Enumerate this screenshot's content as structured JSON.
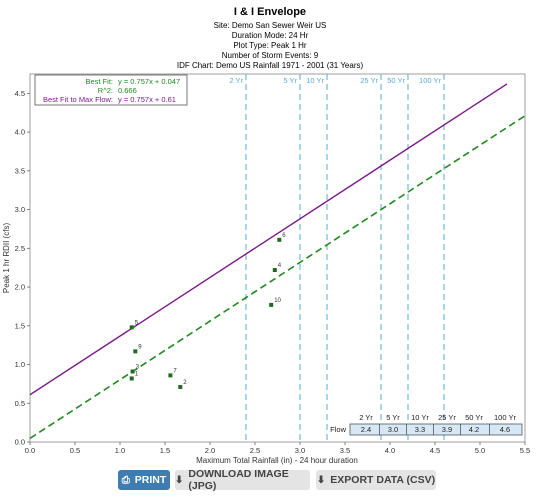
{
  "chart_data": {
    "type": "scatter",
    "title": "I & I Envelope",
    "subtitle_lines": [
      "Site:  Demo San Sewer Weir US",
      "Duration Mode:  24 Hr",
      "Plot Type:  Peak 1 Hr",
      "Number of Storm Events:  9",
      "IDF Chart:  Demo US Rainfall   1971 - 2001 (31 Years)"
    ],
    "xlabel": "Maximum Total Rainfall (in) - 24 hour duration",
    "ylabel": "Peak 1 hr RDII (cfs)",
    "xlim": [
      0,
      5.5
    ],
    "ylim": [
      0,
      4.75
    ],
    "xticks": [
      "0.0",
      "0.5",
      "1.0",
      "1.5",
      "2.0",
      "2.5",
      "3.0",
      "3.5",
      "4.0",
      "4.5",
      "5.0",
      "5.5"
    ],
    "xtick_values": [
      0,
      0.5,
      1.0,
      1.5,
      2.0,
      2.5,
      3.0,
      3.5,
      4.0,
      4.5,
      5.0,
      5.5
    ],
    "yticks": [
      "0.0",
      "0.5",
      "1.0",
      "1.5",
      "2.0",
      "2.5",
      "3.0",
      "3.5",
      "4.0",
      "4.5"
    ],
    "ytick_values": [
      0,
      0.5,
      1.0,
      1.5,
      2.0,
      2.5,
      3.0,
      3.5,
      4.0,
      4.5
    ],
    "points": [
      {
        "label": "1",
        "x": 1.13,
        "y": 0.82
      },
      {
        "label": "2",
        "x": 1.67,
        "y": 0.71
      },
      {
        "label": "3",
        "x": 1.14,
        "y": 0.91
      },
      {
        "label": "4",
        "x": 2.72,
        "y": 2.22
      },
      {
        "label": "5",
        "x": 1.13,
        "y": 1.48
      },
      {
        "label": "6",
        "x": 2.77,
        "y": 2.61
      },
      {
        "label": "7",
        "x": 1.56,
        "y": 0.86
      },
      {
        "label": "9",
        "x": 1.17,
        "y": 1.17
      },
      {
        "label": "10",
        "x": 2.68,
        "y": 1.77
      }
    ],
    "best_fit": {
      "slope": 0.757,
      "intercept": 0.047,
      "color": "#1f8a1f"
    },
    "max_fit": {
      "slope": 0.757,
      "intercept": 0.61,
      "color": "#7a1a8a"
    },
    "return_periods": [
      {
        "label": "2 Yr",
        "x": 2.4
      },
      {
        "label": "5 Yr",
        "x": 3.0
      },
      {
        "label": "10 Yr",
        "x": 3.3
      },
      {
        "label": "25 Yr",
        "x": 3.9
      },
      {
        "label": "50 Yr",
        "x": 4.2
      },
      {
        "label": "100 Yr",
        "x": 4.6
      }
    ],
    "legend": {
      "placement": "top-left",
      "best_fit_label": "Best Fit:",
      "best_fit_eq": "y = 0.757x + 0.047",
      "r2_label": "R^2:",
      "r2_value": "0.666",
      "max_fit_label": "Best Fit to Max Flow:",
      "max_fit_eq": "y = 0.757x + 0.61"
    },
    "flow_table": {
      "row_label": "Flow",
      "headers": [
        "2 Yr",
        "5 Yr",
        "10 Yr",
        "25 Yr",
        "50 Yr",
        "100 Yr"
      ],
      "values": [
        "2.4",
        "3.0",
        "3.3",
        "3.9",
        "4.2",
        "4.6"
      ]
    },
    "colors": {
      "return_line": "#5aa9d6",
      "point": "#1f6b1f",
      "table_bg": "#d6e8f5"
    }
  },
  "buttons": {
    "print": "PRINT",
    "download": "DOWNLOAD IMAGE (JPG)",
    "export": "EXPORT DATA (CSV)"
  }
}
